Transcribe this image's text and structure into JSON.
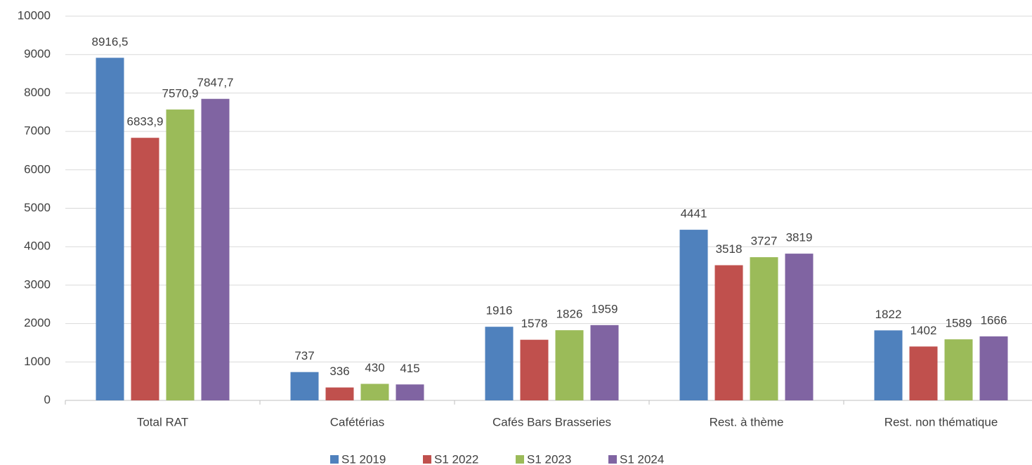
{
  "chart_data": {
    "type": "bar",
    "categories": [
      "Total RAT",
      "Cafétérias",
      "Cafés Bars Brasseries",
      "Rest. à thème",
      "Rest. non thématique"
    ],
    "series": [
      {
        "name": "S1 2019",
        "color": "#4f81bd",
        "values": [
          8916.5,
          737,
          1916,
          4441,
          1822
        ],
        "value_labels": [
          "8916,5",
          "737",
          "1916",
          "4441",
          "1822"
        ]
      },
      {
        "name": "S1 2022",
        "color": "#c0504d",
        "values": [
          6833.9,
          336,
          1578,
          3518,
          1402
        ],
        "value_labels": [
          "6833,9",
          "336",
          "1578",
          "3518",
          "1402"
        ]
      },
      {
        "name": "S1 2023",
        "color": "#9bbb59",
        "values": [
          7570.9,
          430,
          1826,
          3727,
          1589
        ],
        "value_labels": [
          "7570,9",
          "430",
          "1826",
          "3727",
          "1589"
        ]
      },
      {
        "name": "S1 2024",
        "color": "#8064a2",
        "values": [
          7847.7,
          415,
          1959,
          3819,
          1666
        ],
        "value_labels": [
          "7847,7",
          "415",
          "1959",
          "3819",
          "1666"
        ]
      }
    ],
    "ylim": [
      0,
      10000
    ],
    "yticks": [
      0,
      1000,
      2000,
      3000,
      4000,
      5000,
      6000,
      7000,
      8000,
      9000,
      10000
    ],
    "grid": true,
    "legend": "bottom"
  }
}
